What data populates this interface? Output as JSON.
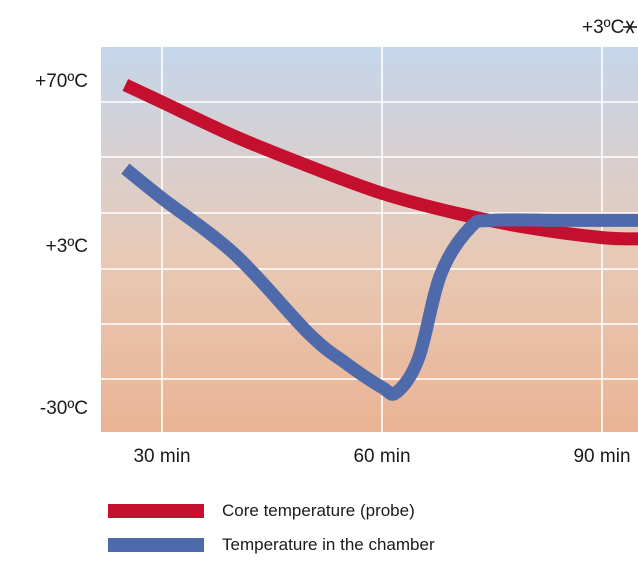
{
  "chart_data": {
    "type": "line",
    "title": "",
    "xlabel": "",
    "ylabel": "",
    "x_ticks": [
      {
        "value": 30,
        "label": "30 min"
      },
      {
        "value": 60,
        "label": "60 min"
      },
      {
        "value": 90,
        "label": "90 min"
      }
    ],
    "y_ticks": [
      {
        "value": 70,
        "label": "+70ºC"
      },
      {
        "value": 3,
        "label": "+3ºC"
      },
      {
        "value": -30,
        "label": "-30ºC"
      }
    ],
    "annotation": "+3ºC",
    "annotation_icon": "snowflake-icon",
    "grid": true,
    "legend_position": "bottom-left",
    "series": [
      {
        "name": "Core temperature (probe)",
        "color": "#c4102e",
        "points": [
          [
            25,
            68
          ],
          [
            30,
            61
          ],
          [
            40,
            47
          ],
          [
            50,
            35
          ],
          [
            60,
            24
          ],
          [
            70,
            16
          ],
          [
            80,
            10
          ],
          [
            90,
            6
          ],
          [
            95,
            5.5
          ]
        ]
      },
      {
        "name": "Temperature in the chamber",
        "color": "#4f6aab",
        "points": [
          [
            25,
            34
          ],
          [
            30,
            22
          ],
          [
            40,
            1
          ],
          [
            50,
            -15
          ],
          [
            55,
            -21
          ],
          [
            60,
            -26
          ],
          [
            62,
            -27
          ],
          [
            65,
            -20
          ],
          [
            68,
            -3
          ],
          [
            72,
            10
          ],
          [
            75,
            13
          ],
          [
            85,
            13
          ],
          [
            95,
            13
          ]
        ]
      }
    ]
  },
  "legend": [
    {
      "label": "Core temperature (probe)",
      "color": "#c4102e"
    },
    {
      "label": "Temperature in the chamber",
      "color": "#4f6aab"
    }
  ]
}
